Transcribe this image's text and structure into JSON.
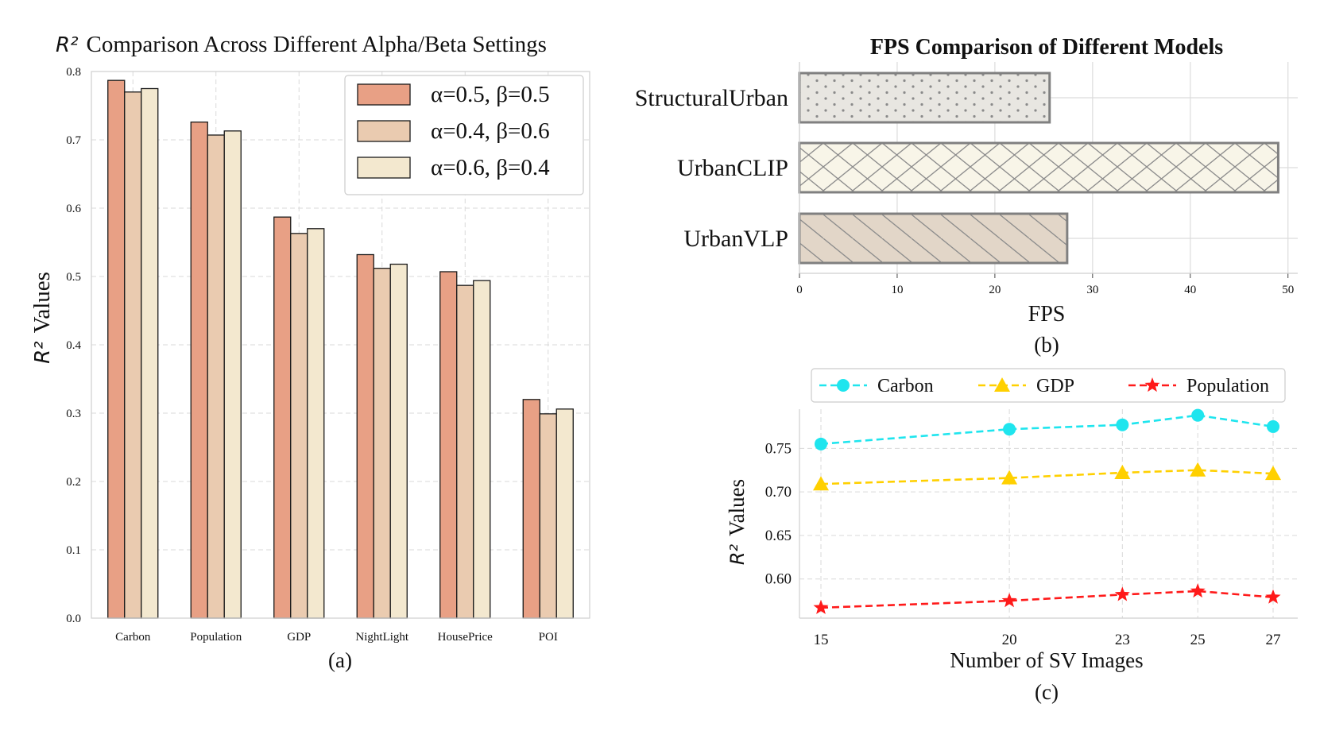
{
  "chart_data": [
    {
      "id": "a",
      "type": "bar",
      "title_symbol": "R²",
      "title": "Comparison Across Different Alpha/Beta Settings",
      "ylabel_symbol": "R²",
      "ylabel": "Values",
      "xlabel": "",
      "caption": "(a)",
      "categories": [
        "Carbon",
        "Population",
        "GDP",
        "NightLight",
        "HousePrice",
        "POI"
      ],
      "ylim": [
        0,
        0.8
      ],
      "yticks": [
        "0.0",
        "0.1",
        "0.2",
        "0.3",
        "0.4",
        "0.5",
        "0.6",
        "0.7",
        "0.8"
      ],
      "legend_position": "top-right",
      "series": [
        {
          "name": "α=0.5, β=0.5",
          "color": "#E8A085",
          "values": [
            0.787,
            0.726,
            0.587,
            0.532,
            0.507,
            0.32
          ]
        },
        {
          "name": "α=0.4, β=0.6",
          "color": "#EACBB0",
          "values": [
            0.77,
            0.707,
            0.563,
            0.512,
            0.487,
            0.299
          ]
        },
        {
          "name": "α=0.6, β=0.4",
          "color": "#F3E8CF",
          "values": [
            0.775,
            0.713,
            0.57,
            0.518,
            0.494,
            0.306
          ]
        }
      ]
    },
    {
      "id": "b",
      "type": "bar",
      "orientation": "horizontal",
      "title": "FPS Comparison of Different Models",
      "xlabel": "FPS",
      "caption": "(b)",
      "categories": [
        "StructuralUrban",
        "UrbanCLIP",
        "UrbanVLP"
      ],
      "values": [
        25.6,
        49.0,
        27.4
      ],
      "patterns": [
        "dots",
        "crosshatch",
        "diagonal"
      ],
      "colors": [
        "#E8E6E1",
        "#F8F5E8",
        "#E2D6C8"
      ],
      "xlim": [
        0,
        51
      ],
      "xticks": [
        "0",
        "10",
        "20",
        "30",
        "40",
        "50"
      ]
    },
    {
      "id": "c",
      "type": "line",
      "xlabel": "Number of SV Images",
      "ylabel_symbol": "R²",
      "ylabel": "Values",
      "caption": "(c)",
      "x": [
        15,
        20,
        23,
        25,
        27
      ],
      "xticks": [
        "15",
        "20",
        "23",
        "25",
        "27"
      ],
      "ylim": [
        0.555,
        0.795
      ],
      "yticks": [
        "0.60",
        "0.65",
        "0.70",
        "0.75"
      ],
      "legend_position": "top",
      "series": [
        {
          "name": "Carbon",
          "color": "#1FE5EE",
          "marker": "circle",
          "values": [
            0.755,
            0.772,
            0.777,
            0.788,
            0.775
          ]
        },
        {
          "name": "GDP",
          "color": "#FFD000",
          "marker": "triangle",
          "values": [
            0.709,
            0.716,
            0.722,
            0.725,
            0.721
          ]
        },
        {
          "name": "Population",
          "color": "#FF1A1A",
          "marker": "star",
          "values": [
            0.567,
            0.575,
            0.582,
            0.586,
            0.579
          ]
        }
      ]
    }
  ]
}
